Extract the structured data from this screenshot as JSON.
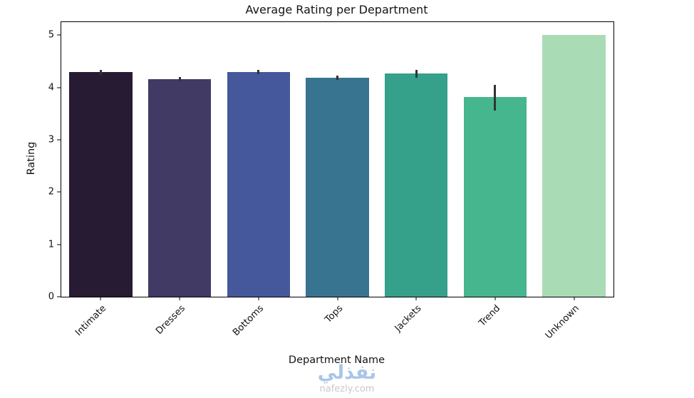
{
  "chart_data": {
    "type": "bar",
    "title": "Average Rating per Department",
    "xlabel": "Department Name",
    "ylabel": "Rating",
    "categories": [
      "Intimate",
      "Dresses",
      "Bottoms",
      "Tops",
      "Jackets",
      "Trend",
      "Unknown"
    ],
    "values": [
      4.29,
      4.16,
      4.29,
      4.19,
      4.27,
      3.82,
      5.0
    ],
    "errors": [
      [
        4.24,
        4.34
      ],
      [
        4.12,
        4.2
      ],
      [
        4.25,
        4.33
      ],
      [
        4.14,
        4.23
      ],
      [
        4.19,
        4.34
      ],
      [
        3.56,
        4.05
      ],
      null
    ],
    "bar_colors": [
      "#271b33",
      "#413a64",
      "#45589b",
      "#38748f",
      "#35a18a",
      "#46b68f",
      "#a9dcb5"
    ],
    "error_color": "#333333",
    "ylim": [
      0,
      5.25
    ],
    "yticks": [
      0,
      1,
      2,
      3,
      4,
      5
    ],
    "grid": false,
    "legend": "none"
  },
  "watermark": {
    "arabic": "نفذلي",
    "domain": "nafezly.com",
    "arabic_color": "#a9c6e8",
    "domain_color": "#c8c8c8"
  }
}
